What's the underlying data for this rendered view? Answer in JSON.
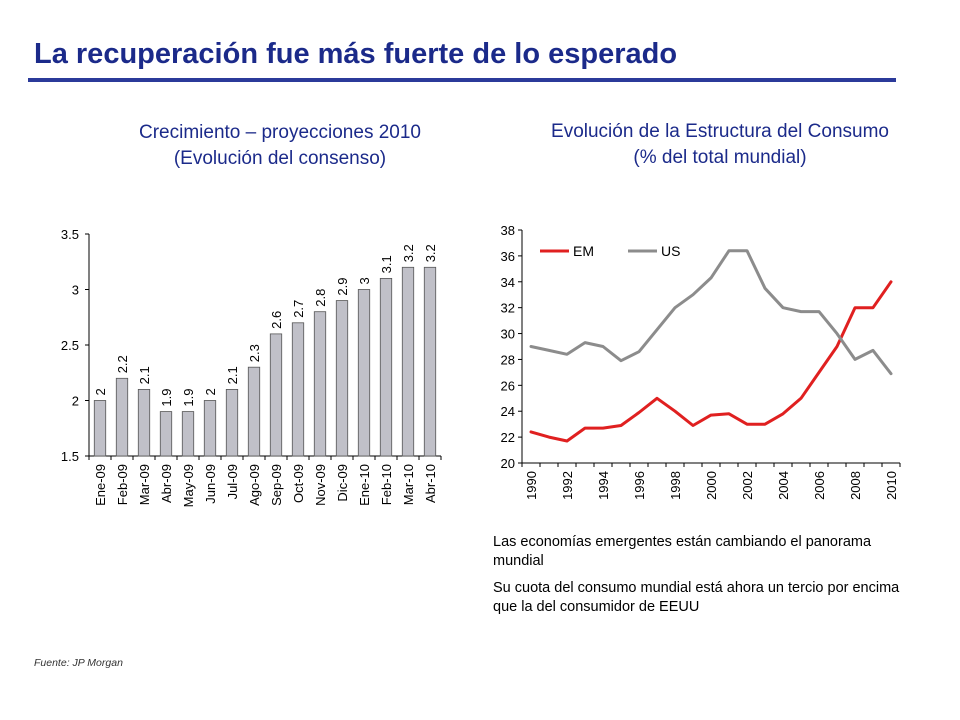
{
  "header": {
    "title": "La recuperación fue más fuerte de lo esperado"
  },
  "left_subtitle": [
    "Crecimiento – proyecciones 2010",
    "(Evolución del consenso)"
  ],
  "right_subtitle": [
    "Evolución de la Estructura del Consumo",
    "(% del total mundial)"
  ],
  "notes": [
    "Las economías emergentes están cambiando el panorama mundial",
    "Su cuota del consumo mundial está ahora un tercio por encima que la del consumidor de EEUU"
  ],
  "source": "Fuente: JP Morgan",
  "chart_data": [
    {
      "type": "bar",
      "title": "",
      "categories": [
        "Ene-09",
        "Feb-09",
        "Mar-09",
        "Abr-09",
        "May-09",
        "Jun-09",
        "Jul-09",
        "Ago-09",
        "Sep-09",
        "Oct-09",
        "Nov-09",
        "Dic-09",
        "Ene-10",
        "Feb-10",
        "Mar-10",
        "Abr-10"
      ],
      "values": [
        2,
        2.2,
        2.1,
        1.9,
        1.9,
        2,
        2.1,
        2.3,
        2.6,
        2.7,
        2.8,
        2.9,
        3,
        3.1,
        3.2,
        3.2
      ],
      "data_labels": [
        "2",
        "2.2",
        "2.1",
        "1.9",
        "1.9",
        "2",
        "2.1",
        "2.3",
        "2.6",
        "2.7",
        "2.8",
        "2.9",
        "3",
        "3.1",
        "3.2",
        "3.2"
      ],
      "yticks": [
        "1.5",
        "2",
        "2.5",
        "3",
        "3.5"
      ],
      "ylim": [
        1.5,
        3.5
      ],
      "bar_color": "#c0c0c8",
      "grid": false
    },
    {
      "type": "line",
      "title": "",
      "x": [
        1990,
        1991,
        1992,
        1993,
        1994,
        1995,
        1996,
        1997,
        1998,
        1999,
        2000,
        2001,
        2002,
        2003,
        2004,
        2005,
        2006,
        2007,
        2008,
        2009,
        2010
      ],
      "xticks": [
        "1990",
        "1992",
        "1994",
        "1996",
        "1998",
        "2000",
        "2002",
        "2004",
        "2006",
        "2008",
        "2010"
      ],
      "yticks": [
        "20",
        "22",
        "24",
        "26",
        "28",
        "30",
        "32",
        "34",
        "36",
        "38"
      ],
      "ylim": [
        20,
        38
      ],
      "series": [
        {
          "name": "EM",
          "color": "#e02020",
          "values": [
            22.4,
            22.0,
            21.7,
            22.7,
            22.7,
            22.9,
            23.9,
            25.0,
            24.0,
            22.9,
            23.7,
            23.8,
            23.0,
            23.0,
            23.8,
            25.0,
            27.0,
            29.0,
            32.0,
            32.0,
            34.0
          ]
        },
        {
          "name": "US",
          "color": "#8c8c8c",
          "values": [
            29.0,
            28.7,
            28.4,
            29.3,
            29.0,
            27.9,
            28.6,
            30.3,
            32.0,
            33.0,
            34.3,
            36.4,
            36.4,
            33.5,
            32.0,
            31.7,
            31.7,
            30.0,
            28.0,
            28.7,
            26.9
          ]
        }
      ],
      "legend": "top-left",
      "grid": false
    }
  ]
}
